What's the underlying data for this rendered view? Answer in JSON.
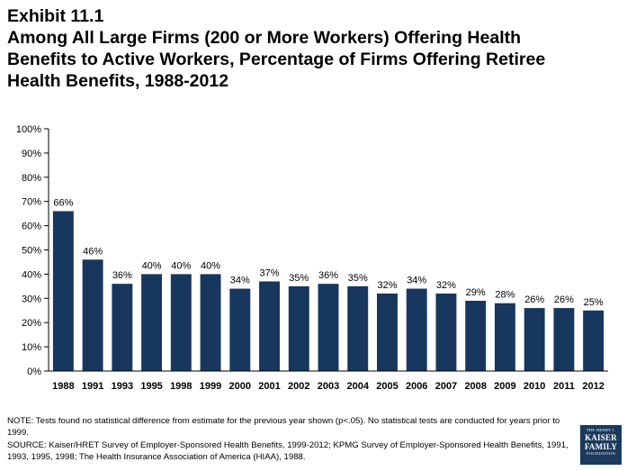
{
  "title": {
    "lines": [
      "Exhibit 11.1",
      "Among All Large Firms (200 or More Workers) Offering Health",
      "Benefits to Active Workers, Percentage of Firms Offering Retiree",
      "Health Benefits, 1988-2012"
    ]
  },
  "chart_data": {
    "type": "bar",
    "title": "Among All Large Firms (200 or More Workers) Offering Health Benefits to Active Workers, Percentage of Firms Offering Retiree Health Benefits, 1988-2012",
    "categories": [
      "1988",
      "1991",
      "1993",
      "1995",
      "1998",
      "1999",
      "2000",
      "2001",
      "2002",
      "2003",
      "2004",
      "2005",
      "2006",
      "2007",
      "2008",
      "2009",
      "2010",
      "2011",
      "2012"
    ],
    "values": [
      66,
      46,
      36,
      40,
      40,
      40,
      34,
      37,
      35,
      36,
      35,
      32,
      34,
      32,
      29,
      28,
      26,
      26,
      25
    ],
    "data_labels": [
      "66%",
      "46%",
      "36%",
      "40%",
      "40%",
      "40%",
      "34%",
      "37%",
      "35%",
      "36%",
      "35%",
      "32%",
      "34%",
      "32%",
      "29%",
      "28%",
      "26%",
      "26%",
      "25%"
    ],
    "y_ticks": [
      0,
      10,
      20,
      30,
      40,
      50,
      60,
      70,
      80,
      90,
      100
    ],
    "y_tick_labels": [
      "0%",
      "10%",
      "20%",
      "30%",
      "40%",
      "50%",
      "60%",
      "70%",
      "80%",
      "90%",
      "100%"
    ],
    "ylim": [
      0,
      100
    ],
    "xlabel": "",
    "ylabel": "",
    "grid": false,
    "bar_color": "#17375e"
  },
  "footnotes": {
    "note": "NOTE: Tests found no statistical difference from estimate for the previous year shown (p<.05).  No statistical tests are conducted for years prior to 1999.",
    "source": "SOURCE: Kaiser/HRET Survey of Employer-Sponsored Health Benefits, 1999-2012; KPMG Survey of Employer-Sponsored Health Benefits, 1991, 1993, 1995, 1998; The Health Insurance Association of America (HIAA), 1988."
  },
  "logo": {
    "top": "THE HENRY J.",
    "line1": "KAISER",
    "line2": "FAMILY",
    "bottom": "FOUNDATION",
    "color": "#1b3a5c"
  }
}
